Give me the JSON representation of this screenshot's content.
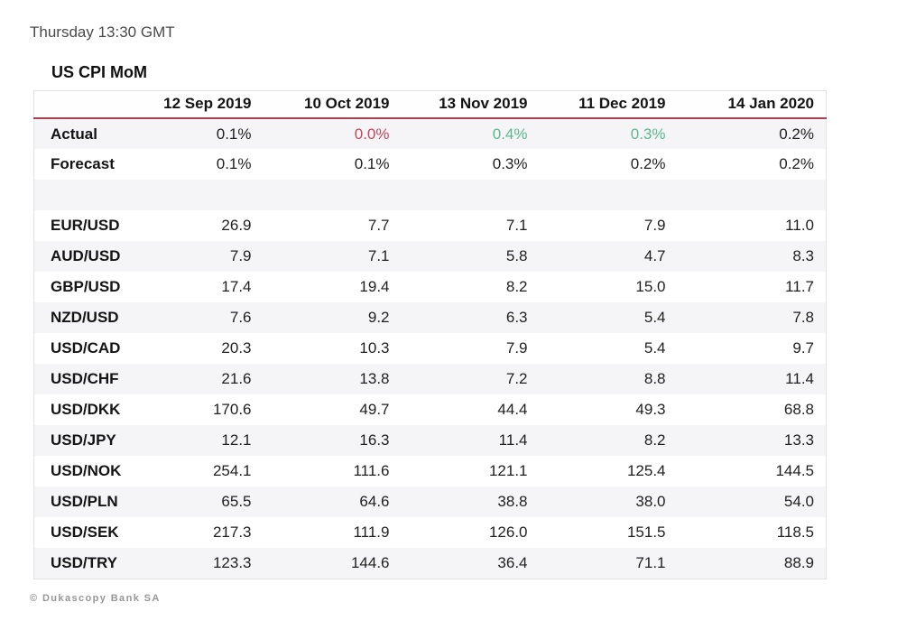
{
  "page": {
    "timestamp": "Thursday 13:30 GMT",
    "copyright": "© Dukascopy Bank SA"
  },
  "colors": {
    "accent_underline": "#a64250",
    "negative_value": "#c0485a",
    "positive_value": "#5bb88d",
    "alt_row_bg": "#f5f5f7"
  },
  "table": {
    "title": "US CPI MoM",
    "headers": [
      "",
      "12 Sep 2019",
      "10 Oct 2019",
      "13 Nov 2019",
      "11 Dec 2019",
      "14 Jan 2020"
    ],
    "rows": [
      {
        "label": "Actual",
        "values": [
          "0.1%",
          "0.0%",
          "0.4%",
          "0.3%",
          "0.2%"
        ],
        "colors": [
          "default",
          "red",
          "green",
          "green",
          "default"
        ]
      },
      {
        "label": "Forecast",
        "values": [
          "0.1%",
          "0.1%",
          "0.3%",
          "0.2%",
          "0.2%"
        ]
      },
      {
        "label": "",
        "values": [
          "",
          "",
          "",
          "",
          ""
        ]
      },
      {
        "label": "EUR/USD",
        "values": [
          "26.9",
          "7.7",
          "7.1",
          "7.9",
          "11.0"
        ]
      },
      {
        "label": "AUD/USD",
        "values": [
          "7.9",
          "7.1",
          "5.8",
          "4.7",
          "8.3"
        ]
      },
      {
        "label": "GBP/USD",
        "values": [
          "17.4",
          "19.4",
          "8.2",
          "15.0",
          "11.7"
        ]
      },
      {
        "label": "NZD/USD",
        "values": [
          "7.6",
          "9.2",
          "6.3",
          "5.4",
          "7.8"
        ]
      },
      {
        "label": "USD/CAD",
        "values": [
          "20.3",
          "10.3",
          "7.9",
          "5.4",
          "9.7"
        ]
      },
      {
        "label": "USD/CHF",
        "values": [
          "21.6",
          "13.8",
          "7.2",
          "8.8",
          "11.4"
        ]
      },
      {
        "label": "USD/DKK",
        "values": [
          "170.6",
          "49.7",
          "44.4",
          "49.3",
          "68.8"
        ]
      },
      {
        "label": "USD/JPY",
        "values": [
          "12.1",
          "16.3",
          "11.4",
          "8.2",
          "13.3"
        ]
      },
      {
        "label": "USD/NOK",
        "values": [
          "254.1",
          "111.6",
          "121.1",
          "125.4",
          "144.5"
        ]
      },
      {
        "label": "USD/PLN",
        "values": [
          "65.5",
          "64.6",
          "38.8",
          "38.0",
          "54.0"
        ]
      },
      {
        "label": "USD/SEK",
        "values": [
          "217.3",
          "111.9",
          "126.0",
          "151.5",
          "118.5"
        ]
      },
      {
        "label": "USD/TRY",
        "values": [
          "123.3",
          "144.6",
          "36.4",
          "71.1",
          "88.9"
        ]
      }
    ]
  },
  "chart_data": {
    "type": "table",
    "title": "US CPI MoM",
    "columns": [
      "12 Sep 2019",
      "10 Oct 2019",
      "13 Nov 2019",
      "11 Dec 2019",
      "14 Jan 2020"
    ],
    "rows": [
      {
        "label": "Actual",
        "values": [
          "0.1%",
          "0.0%",
          "0.4%",
          "0.3%",
          "0.2%"
        ]
      },
      {
        "label": "Forecast",
        "values": [
          "0.1%",
          "0.1%",
          "0.3%",
          "0.2%",
          "0.2%"
        ]
      },
      {
        "label": "EUR/USD",
        "values": [
          26.9,
          7.7,
          7.1,
          7.9,
          11.0
        ]
      },
      {
        "label": "AUD/USD",
        "values": [
          7.9,
          7.1,
          5.8,
          4.7,
          8.3
        ]
      },
      {
        "label": "GBP/USD",
        "values": [
          17.4,
          19.4,
          8.2,
          15.0,
          11.7
        ]
      },
      {
        "label": "NZD/USD",
        "values": [
          7.6,
          9.2,
          6.3,
          5.4,
          7.8
        ]
      },
      {
        "label": "USD/CAD",
        "values": [
          20.3,
          10.3,
          7.9,
          5.4,
          9.7
        ]
      },
      {
        "label": "USD/CHF",
        "values": [
          21.6,
          13.8,
          7.2,
          8.8,
          11.4
        ]
      },
      {
        "label": "USD/DKK",
        "values": [
          170.6,
          49.7,
          44.4,
          49.3,
          68.8
        ]
      },
      {
        "label": "USD/JPY",
        "values": [
          12.1,
          16.3,
          11.4,
          8.2,
          13.3
        ]
      },
      {
        "label": "USD/NOK",
        "values": [
          254.1,
          111.6,
          121.1,
          125.4,
          144.5
        ]
      },
      {
        "label": "USD/PLN",
        "values": [
          65.5,
          64.6,
          38.8,
          38.0,
          54.0
        ]
      },
      {
        "label": "USD/SEK",
        "values": [
          217.3,
          111.9,
          126.0,
          151.5,
          118.5
        ]
      },
      {
        "label": "USD/TRY",
        "values": [
          123.3,
          144.6,
          36.4,
          71.1,
          88.9
        ]
      }
    ],
    "value_annotations": {
      "Actual": {
        "0.0%": "below forecast (red)",
        "0.4%": "above forecast (green)",
        "0.3%": "above forecast (green)"
      }
    },
    "legend_position": "none",
    "grid": "horizontal row striping"
  }
}
